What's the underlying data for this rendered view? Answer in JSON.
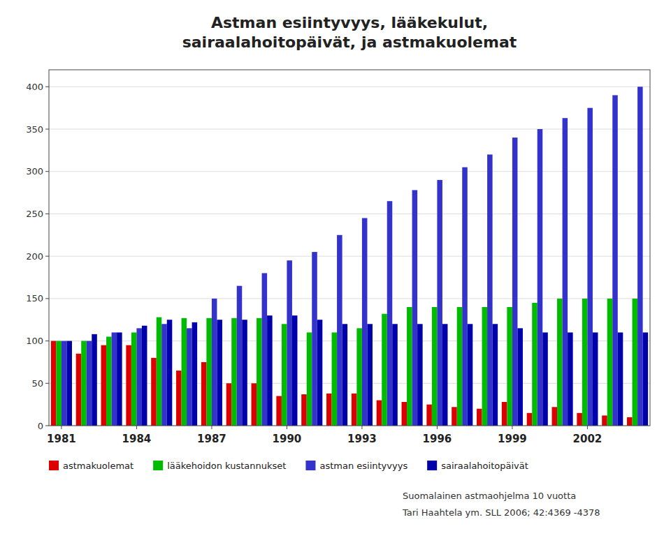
{
  "chart_data": {
    "type": "bar",
    "title": "Astman esiintyvyys, lääkekulut,\nsairaalahoitopäivät, ja astmakuolemat",
    "annotations": [
      "Suomalainen astmaohjelma 10 vuotta",
      "Tari Haahtela ym. SLL 2006; 42:4369 -4378"
    ],
    "categories": [
      "1981",
      null,
      null,
      "1984",
      null,
      null,
      "1987",
      null,
      null,
      "1990",
      null,
      null,
      "1993",
      null,
      null,
      "1996",
      null,
      null,
      "1999",
      null,
      null,
      "2002",
      null,
      null
    ],
    "series": [
      {
        "name": "astmakuolemat",
        "color": "#DD0000",
        "values": [
          100,
          85,
          95,
          95,
          80,
          65,
          75,
          50,
          50,
          35,
          37,
          38,
          38,
          30,
          28,
          25,
          22,
          20,
          28,
          15,
          22,
          15,
          12,
          10
        ]
      },
      {
        "name": "lääkehoidon kustannukset",
        "color": "#00BB00",
        "values": [
          100,
          100,
          105,
          110,
          128,
          127,
          127,
          127,
          127,
          120,
          110,
          110,
          115,
          132,
          140,
          140,
          140,
          140,
          140,
          145,
          150,
          150,
          150,
          150
        ]
      },
      {
        "name": "astman esiintyvyys",
        "color": "#3333CC",
        "values": [
          100,
          100,
          110,
          115,
          120,
          115,
          150,
          165,
          180,
          195,
          205,
          225,
          245,
          265,
          278,
          290,
          305,
          320,
          340,
          350,
          363,
          375,
          390,
          400
        ]
      },
      {
        "name": "sairaalahoitopäivät",
        "color": "#0000AA",
        "values": [
          100,
          108,
          110,
          118,
          125,
          122,
          125,
          125,
          130,
          130,
          125,
          120,
          120,
          120,
          120,
          120,
          120,
          120,
          115,
          110,
          110,
          110,
          110,
          110
        ]
      }
    ],
    "ylim": [
      0,
      420
    ],
    "yticks": [
      0,
      50,
      100,
      150,
      200,
      250,
      300,
      350,
      400
    ],
    "grid": true,
    "legend": "bottom"
  }
}
